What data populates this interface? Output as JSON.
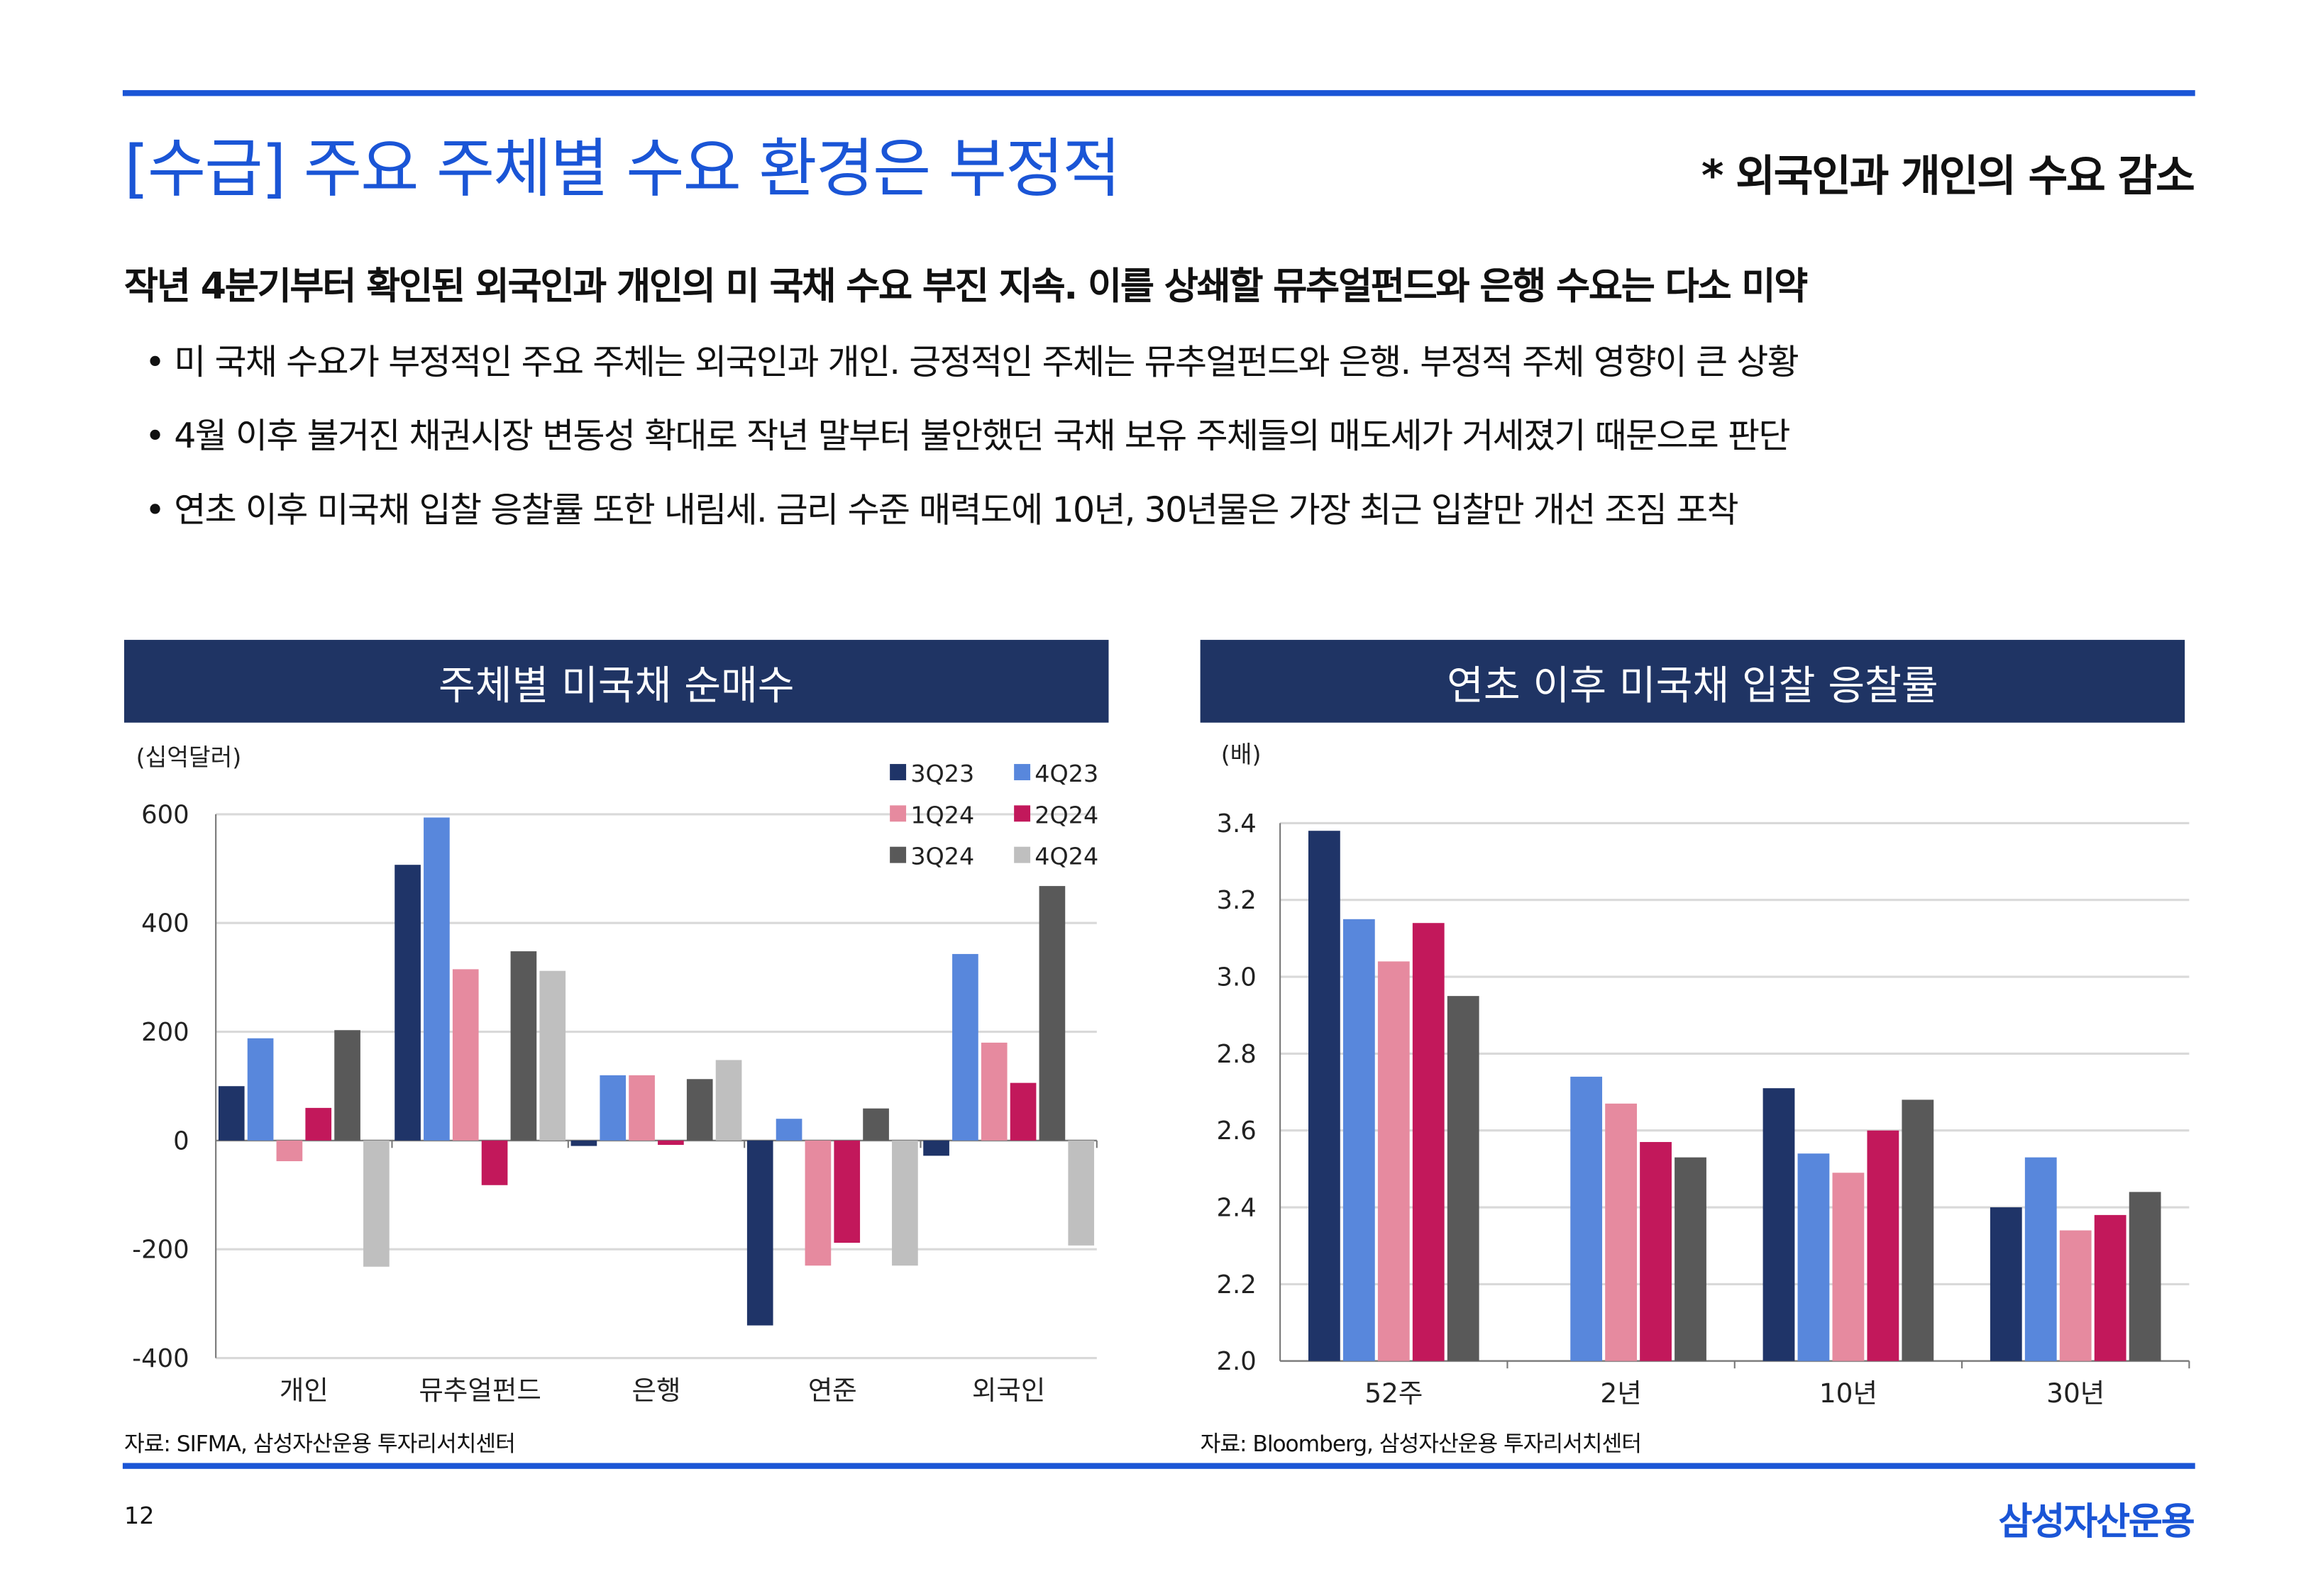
{
  "header": {
    "title": "[수급] 주요 주체별 수요 환경은 부정적",
    "tag": "* 외국인과 개인의 수요 감소"
  },
  "lead": "작년 4분기부터 확인된 외국인과 개인의 미 국채 수요 부진 지속. 이를 상쇄할 뮤추얼펀드와 은행 수요는 다소 미약",
  "bullets": [
    "• 미 국채 수요가 부정적인 주요 주체는 외국인과 개인. 긍정적인 주체는 뮤추얼펀드와 은행. 부정적 주체 영향이 큰 상황",
    "• 4월 이후 불거진 채권시장 변동성 확대로 작년 말부터 불안했던 국채 보유 주체들의 매도세가 거세졌기 때문으로 판단",
    "• 연초 이후 미국채 입찰 응찰률 또한 내림세. 금리 수준 매력도에 10년, 30년물은 가장 최근 입찰만 개선 조짐 포착"
  ],
  "footer": {
    "page": "12",
    "logo": "삼성자산운용"
  },
  "colors": [
    "#1f3468",
    "#5887dc",
    "#e68a9f",
    "#c2185b",
    "#595959",
    "#bfbfbf"
  ],
  "chart_data": [
    {
      "type": "bar",
      "title": "주체별 미국채 순매수",
      "unit": "(십억달러)",
      "source": "자료: SIFMA, 삼성자산운용 투자리서치센터",
      "categories": [
        "개인",
        "뮤추얼펀드",
        "은행",
        "연준",
        "외국인"
      ],
      "ylim": [
        -400,
        600
      ],
      "yticks": [
        "600",
        "400",
        "200",
        "0",
        "-200",
        "-400"
      ],
      "legend": "top-right",
      "grid": true,
      "series": [
        {
          "name": "3Q23",
          "values": [
            100,
            507,
            -10,
            -340,
            -28
          ]
        },
        {
          "name": "4Q23",
          "values": [
            188,
            594,
            120,
            40,
            343
          ]
        },
        {
          "name": "1Q24",
          "values": [
            -38,
            315,
            120,
            -230,
            180
          ]
        },
        {
          "name": "2Q24",
          "values": [
            60,
            -82,
            -8,
            -188,
            106
          ]
        },
        {
          "name": "3Q24",
          "values": [
            203,
            348,
            113,
            59,
            468
          ]
        },
        {
          "name": "4Q24",
          "values": [
            -232,
            312,
            148,
            -230,
            -193
          ]
        }
      ]
    },
    {
      "type": "bar",
      "title": "연초 이후 미국채 입찰 응찰률",
      "unit": "(배)",
      "source": "자료: Bloomberg, 삼성자산운용 투자리서치센터",
      "categories": [
        "52주",
        "2년",
        "10년",
        "30년"
      ],
      "ylim": [
        2.0,
        3.4
      ],
      "yticks": [
        "3.4",
        "3.2",
        "3.0",
        "2.8",
        "2.6",
        "2.4",
        "2.2",
        "2.0"
      ],
      "grid": true,
      "series": [
        {
          "values": [
            3.38,
            null,
            2.71,
            2.4
          ]
        },
        {
          "values": [
            3.15,
            2.74,
            2.54,
            2.53
          ]
        },
        {
          "values": [
            3.04,
            2.67,
            2.49,
            2.34
          ]
        },
        {
          "values": [
            3.14,
            2.57,
            2.6,
            2.38
          ]
        },
        {
          "values": [
            2.95,
            2.53,
            2.68,
            2.44
          ]
        }
      ]
    }
  ]
}
